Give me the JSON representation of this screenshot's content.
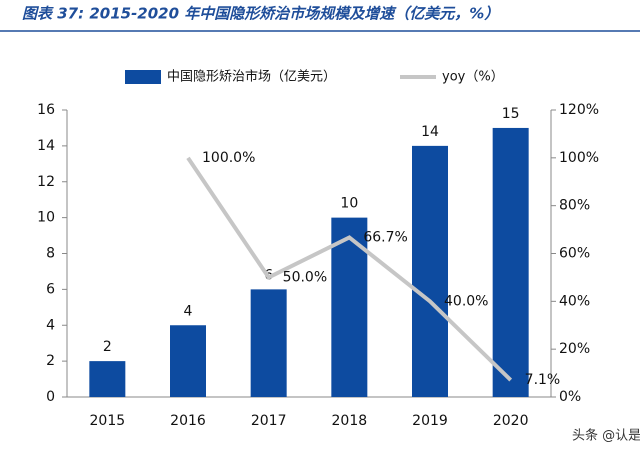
{
  "chart_data": {
    "type": "bar_line",
    "title": "图表 37: 2015-2020 年中国隐形矫治市场规模及增速（亿美元，%）",
    "categories": [
      "2015",
      "2016",
      "2017",
      "2018",
      "2019",
      "2020"
    ],
    "series": [
      {
        "name": "中国隐形矫治市场（亿美元）",
        "color": "#0d4ba0",
        "type": "bar",
        "values": [
          2,
          4,
          6,
          10,
          14,
          15
        ]
      },
      {
        "name": "yoy（%）",
        "color": "#c6c6c6",
        "type": "line",
        "axis": "y2",
        "values": [
          null,
          100.0,
          50.0,
          66.7,
          40.0,
          7.1
        ],
        "value_labels": [
          null,
          "100.0%",
          "50.0%",
          "66.7%",
          "40.0%",
          "7.1%"
        ]
      }
    ],
    "ylim": [
      0,
      16
    ],
    "yticks": [
      0,
      2,
      4,
      6,
      8,
      10,
      12,
      14,
      16
    ],
    "y2lim": [
      0,
      120
    ],
    "y2ticks": [
      {
        "value": 0,
        "label": "0%"
      },
      {
        "value": 20,
        "label": "20%"
      },
      {
        "value": 40,
        "label": "40%"
      },
      {
        "value": 60,
        "label": "60%"
      },
      {
        "value": 80,
        "label": "80%"
      },
      {
        "value": 100,
        "label": "100%"
      },
      {
        "value": 120,
        "label": "120%"
      }
    ],
    "legend": "top",
    "watermark": "头条 @认是"
  }
}
